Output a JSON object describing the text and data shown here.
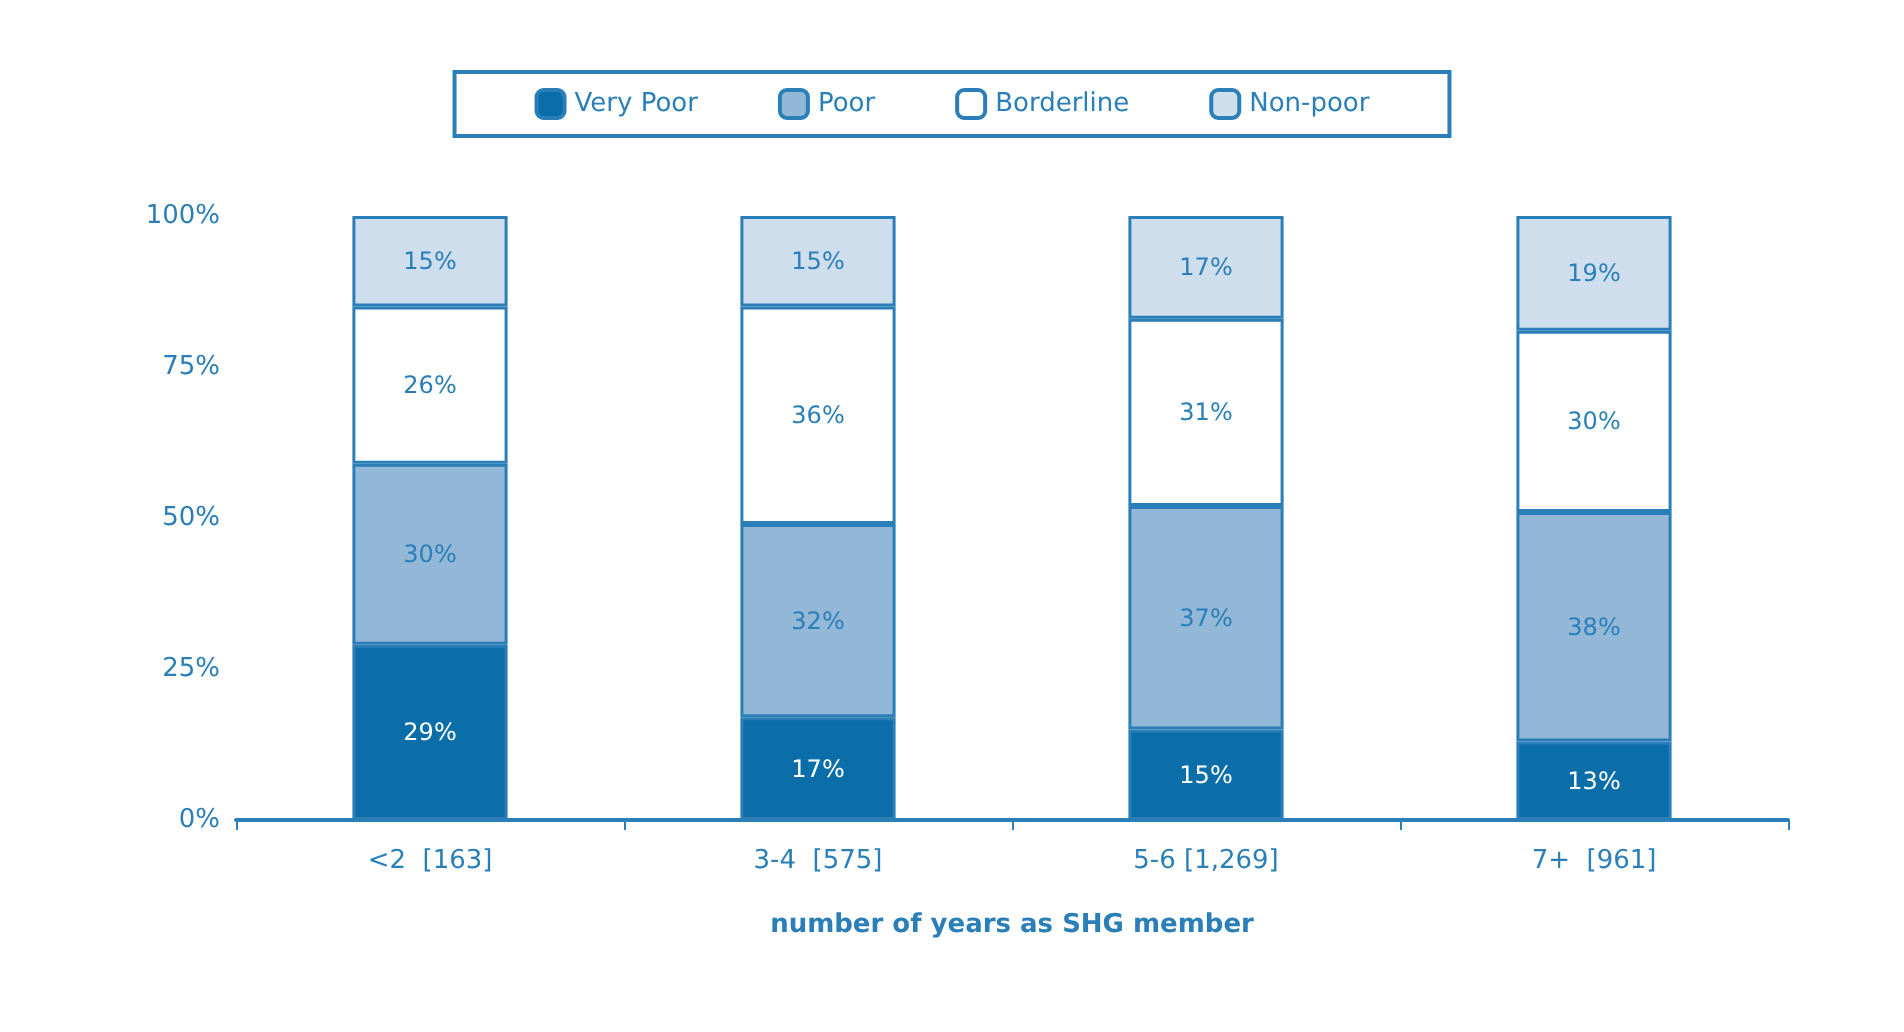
{
  "chart_data": {
    "type": "bar",
    "stacked": true,
    "xlabel": "number of years as SHG member",
    "categories": [
      "<2  [163]",
      "3-4  [575]",
      "5-6 [1,269]",
      "7+  [961]"
    ],
    "series": [
      {
        "name": "Very Poor",
        "color": "#0b6ea8",
        "values": [
          29,
          17,
          15,
          13
        ],
        "value_labels": [
          "29%",
          "17%",
          "15%",
          "13%"
        ]
      },
      {
        "name": "Poor",
        "color": "#93b7d7",
        "values": [
          30,
          32,
          37,
          38
        ],
        "value_labels": [
          "30%",
          "32%",
          "37%",
          "38%"
        ]
      },
      {
        "name": "Borderline",
        "color": "#ffffff",
        "values": [
          26,
          36,
          31,
          30
        ],
        "value_labels": [
          "26%",
          "36%",
          "31%",
          "30%"
        ]
      },
      {
        "name": "Non-poor",
        "color": "#cfdeed",
        "values": [
          15,
          15,
          17,
          19
        ],
        "value_labels": [
          "15%",
          "15%",
          "17%",
          "19%"
        ]
      }
    ],
    "ylim": [
      0,
      100
    ],
    "yticks": [
      {
        "value": 0,
        "label": "0%"
      },
      {
        "value": 25,
        "label": "25%"
      },
      {
        "value": 50,
        "label": "50%"
      },
      {
        "value": 75,
        "label": "75%"
      },
      {
        "value": 100,
        "label": "100%"
      }
    ],
    "grid": false,
    "legend": "top"
  }
}
